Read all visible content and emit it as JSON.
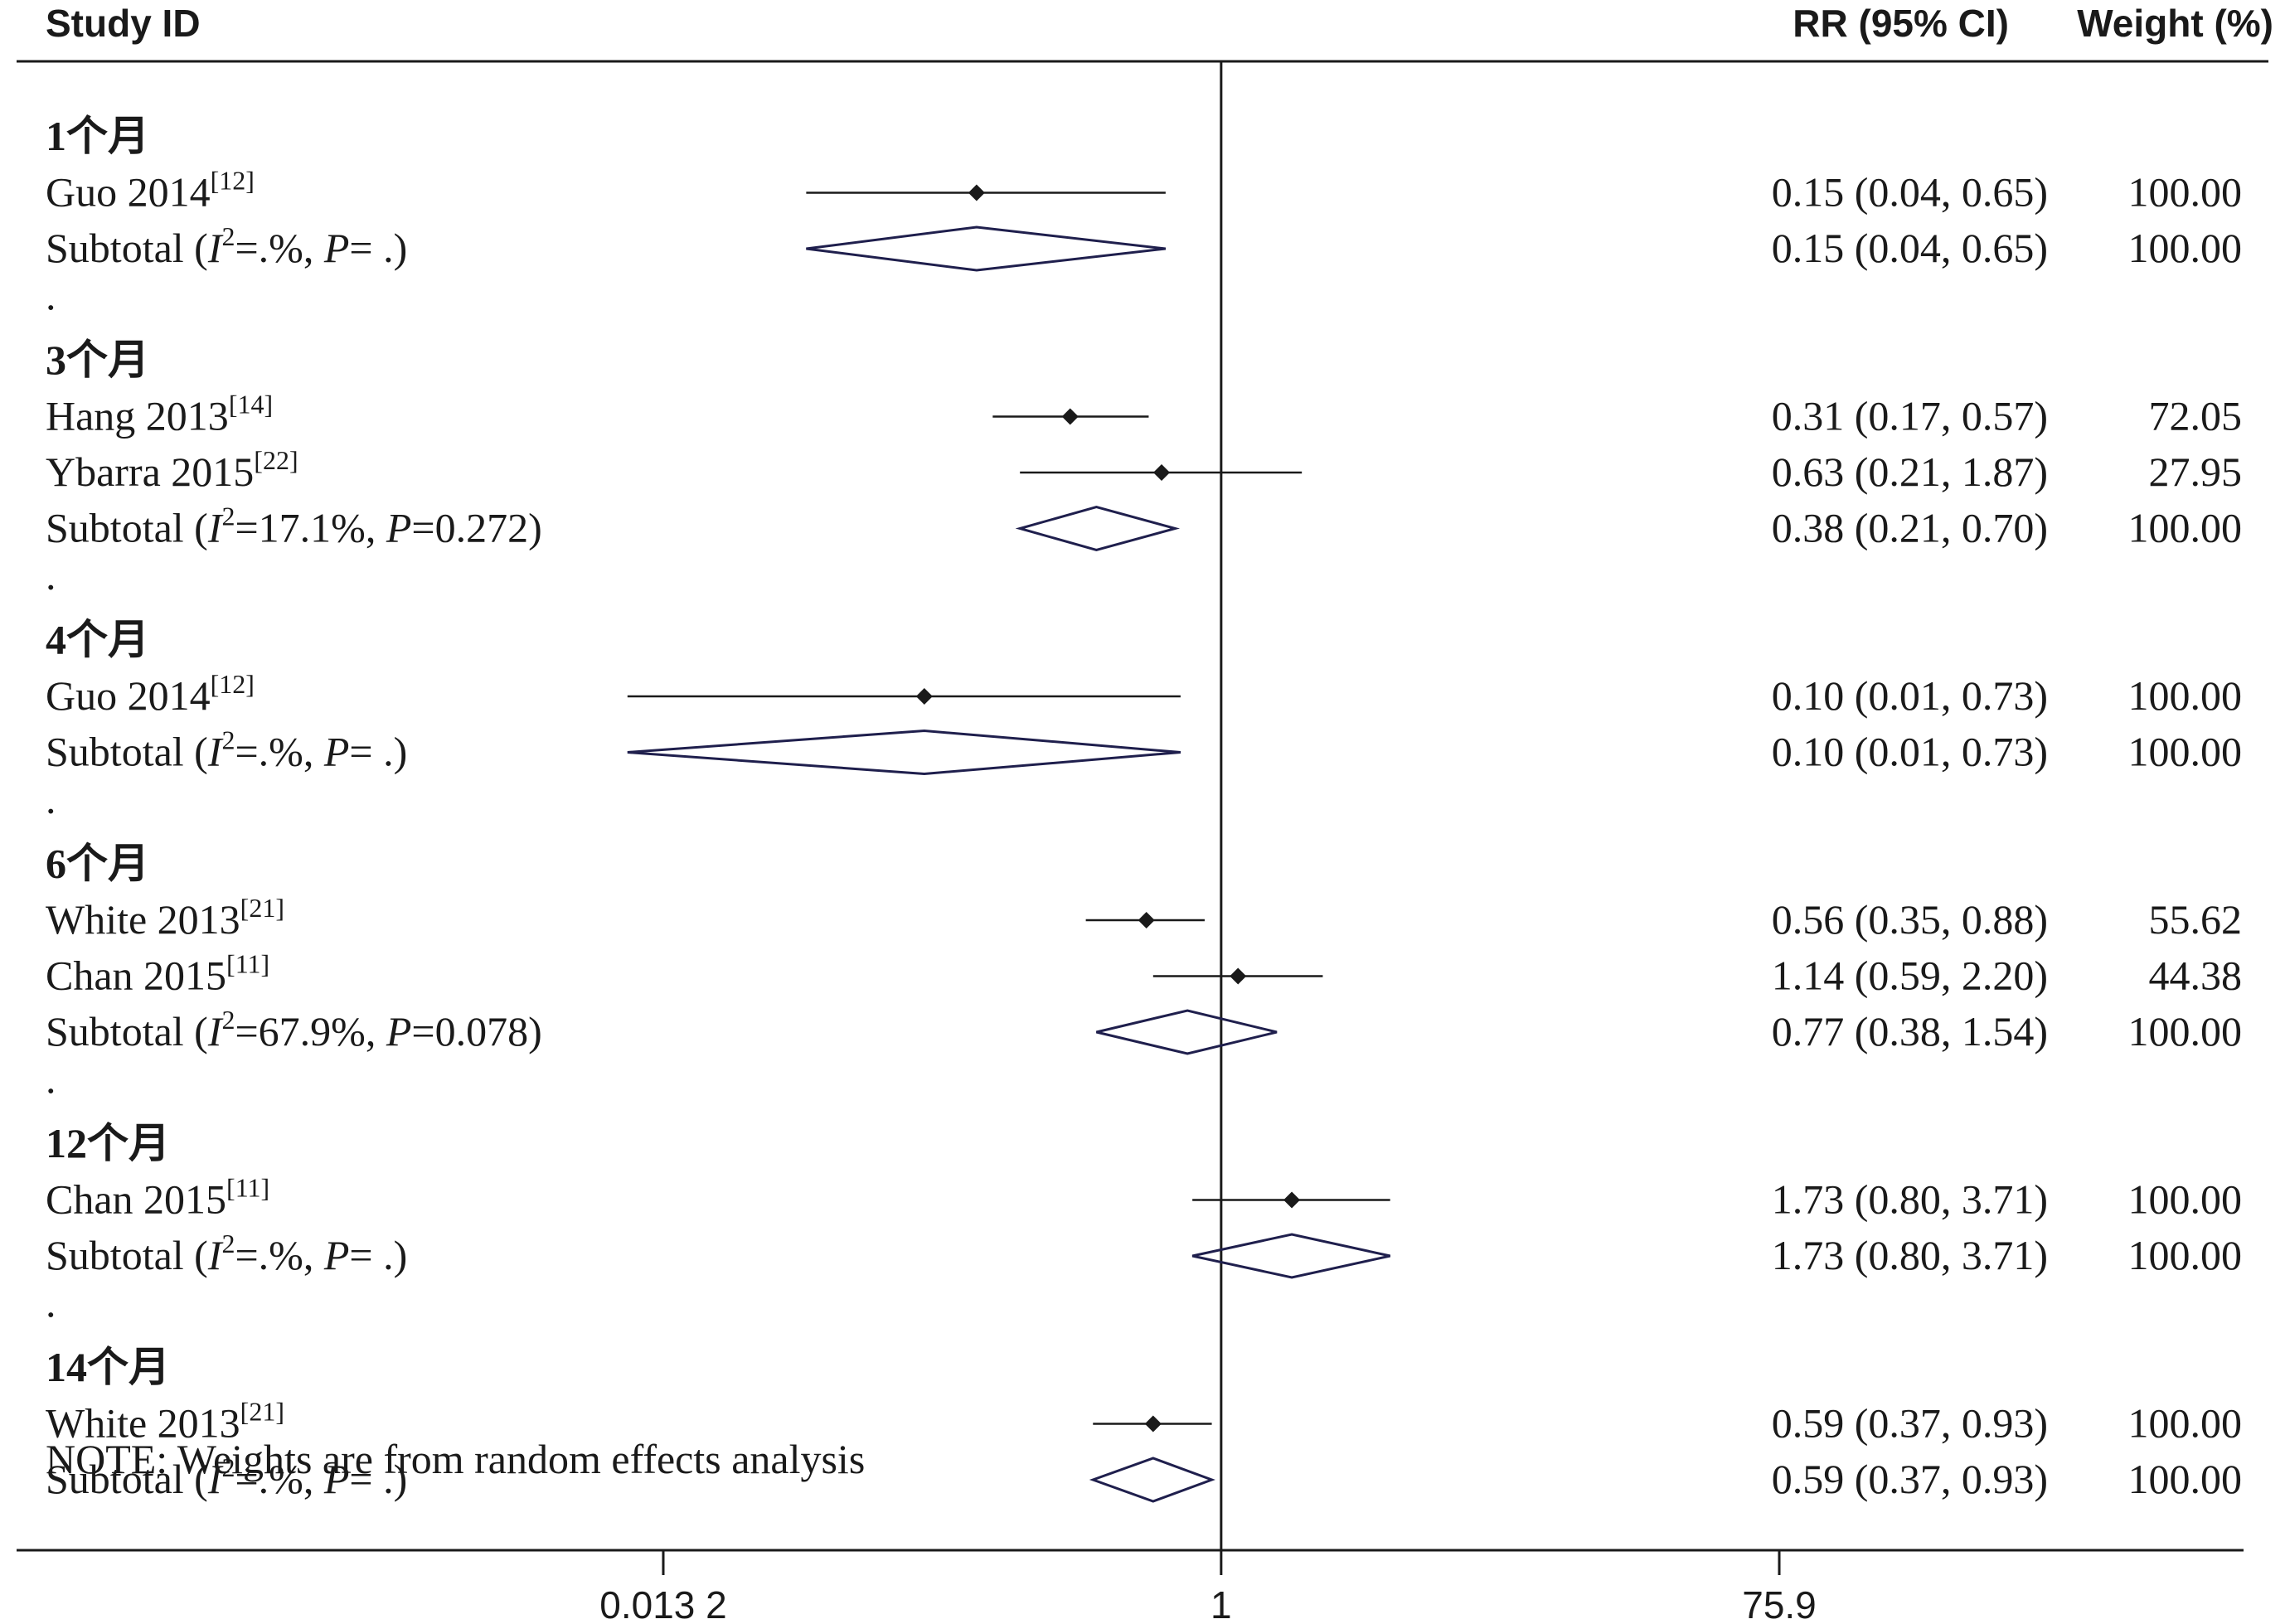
{
  "header": {
    "study_col": "Study ID",
    "rr_col": "RR (95% CI)",
    "weight_col": "Weight (%)"
  },
  "note": "NOTE: Weights are from random effects analysis",
  "colors": {
    "ink": "#1a1a1a",
    "diamond": "#1f1f4d"
  },
  "chart_data": {
    "type": "forest",
    "x_scale": "log",
    "x_range": [
      0.0132,
      75.9
    ],
    "x_ticks": [
      {
        "value": 0.0132,
        "label": "0.013 2"
      },
      {
        "value": 1,
        "label": "1"
      },
      {
        "value": 75.9,
        "label": "75.9"
      }
    ],
    "null_line": 1,
    "rows": [
      {
        "kind": "group",
        "label": "1个月"
      },
      {
        "kind": "study",
        "name": "Guo 2014",
        "ref": "[12]",
        "rr": 0.15,
        "lo": 0.04,
        "hi": 0.65,
        "rr_text": "0.15 (0.04, 0.65)",
        "weight_text": "100.00"
      },
      {
        "kind": "subtotal",
        "i2": ".%",
        "p": " .",
        "rr": 0.15,
        "lo": 0.04,
        "hi": 0.65,
        "rr_text": "0.15 (0.04, 0.65)",
        "weight_text": "100.00"
      },
      {
        "kind": "dot",
        "label": "."
      },
      {
        "kind": "group",
        "label": "3个月"
      },
      {
        "kind": "study",
        "name": "Hang 2013",
        "ref": "[14]",
        "rr": 0.31,
        "lo": 0.17,
        "hi": 0.57,
        "rr_text": "0.31 (0.17, 0.57)",
        "weight_text": "72.05"
      },
      {
        "kind": "study",
        "name": "Ybarra 2015",
        "ref": "[22]",
        "rr": 0.63,
        "lo": 0.21,
        "hi": 1.87,
        "rr_text": "0.63 (0.21, 1.87)",
        "weight_text": "27.95"
      },
      {
        "kind": "subtotal",
        "i2": "17.1%",
        "p": "0.272",
        "rr": 0.38,
        "lo": 0.21,
        "hi": 0.7,
        "rr_text": "0.38 (0.21, 0.70)",
        "weight_text": "100.00"
      },
      {
        "kind": "dot",
        "label": "."
      },
      {
        "kind": "group",
        "label": "4个月"
      },
      {
        "kind": "study",
        "name": "Guo 2014",
        "ref": "[12]",
        "rr": 0.1,
        "lo": 0.01,
        "hi": 0.73,
        "rr_text": "0.10 (0.01, 0.73)",
        "weight_text": "100.00"
      },
      {
        "kind": "subtotal",
        "i2": ".%",
        "p": " .",
        "rr": 0.1,
        "lo": 0.01,
        "hi": 0.73,
        "rr_text": "0.10 (0.01, 0.73)",
        "weight_text": "100.00"
      },
      {
        "kind": "dot",
        "label": "."
      },
      {
        "kind": "group",
        "label": "6个月"
      },
      {
        "kind": "study",
        "name": "White 2013",
        "ref": "[21]",
        "rr": 0.56,
        "lo": 0.35,
        "hi": 0.88,
        "rr_text": "0.56 (0.35, 0.88)",
        "weight_text": "55.62"
      },
      {
        "kind": "study",
        "name": "Chan  2015",
        "ref": "[11]",
        "rr": 1.14,
        "lo": 0.59,
        "hi": 2.2,
        "rr_text": "1.14 (0.59, 2.20)",
        "weight_text": "44.38"
      },
      {
        "kind": "subtotal",
        "i2": "67.9%",
        "p": "0.078",
        "rr": 0.77,
        "lo": 0.38,
        "hi": 1.54,
        "rr_text": "0.77 (0.38, 1.54)",
        "weight_text": "100.00"
      },
      {
        "kind": "dot",
        "label": "."
      },
      {
        "kind": "group",
        "label": "12个月"
      },
      {
        "kind": "study",
        "name": "Chan  2015",
        "ref": "[11]",
        "rr": 1.73,
        "lo": 0.8,
        "hi": 3.71,
        "rr_text": "1.73 (0.80, 3.71)",
        "weight_text": "100.00"
      },
      {
        "kind": "subtotal",
        "i2": ".%",
        "p": " .",
        "rr": 1.73,
        "lo": 0.8,
        "hi": 3.71,
        "rr_text": "1.73 (0.80, 3.71)",
        "weight_text": "100.00"
      },
      {
        "kind": "dot",
        "label": "."
      },
      {
        "kind": "group",
        "label": "14个月"
      },
      {
        "kind": "study",
        "name": "White 2013",
        "ref": "[21]",
        "rr": 0.59,
        "lo": 0.37,
        "hi": 0.93,
        "rr_text": "0.59 (0.37, 0.93)",
        "weight_text": "100.00"
      },
      {
        "kind": "subtotal",
        "i2": ".%",
        "p": " .",
        "rr": 0.59,
        "lo": 0.37,
        "hi": 0.93,
        "rr_text": "0.59 (0.37, 0.93)",
        "weight_text": "100.00"
      }
    ]
  }
}
